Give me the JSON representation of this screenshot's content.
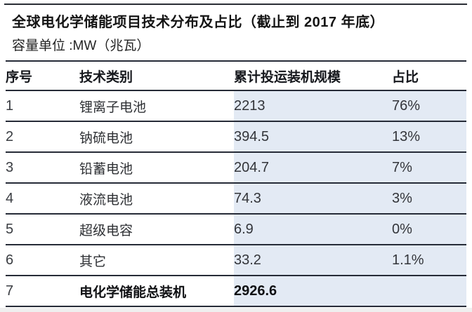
{
  "header": {
    "title": "全球电化学储能项目技术分布及占比（截止到 2017 年底）",
    "unit_label": "容量单位 :MW（兆瓦）"
  },
  "chart_data": {
    "type": "table",
    "title": "全球电化学储能项目技术分布及占比（截止到 2017 年底）",
    "unit": "MW（兆瓦）",
    "as_of": "2017 年底",
    "columns": [
      "序号",
      "技术类别",
      "累计投运装机规模",
      "占比"
    ],
    "rows": [
      {
        "no": "1",
        "tech": "锂离子电池",
        "capacity": 2213,
        "share": "76%"
      },
      {
        "no": "2",
        "tech": "钠硫电池",
        "capacity": 394.5,
        "share": "13%"
      },
      {
        "no": "3",
        "tech": "铅蓄电池",
        "capacity": 204.7,
        "share": "7%"
      },
      {
        "no": "4",
        "tech": "液流电池",
        "capacity": 74.3,
        "share": "3%"
      },
      {
        "no": "5",
        "tech": "超级电容",
        "capacity": 6.9,
        "share": "0%"
      },
      {
        "no": "6",
        "tech": "其它",
        "capacity": 33.2,
        "share": "1.1%"
      },
      {
        "no": "7",
        "tech": "电化学储能总装机",
        "capacity": 2926.6,
        "share": ""
      }
    ],
    "total_row_index": 6
  },
  "colors": {
    "highlight_band": "#e3eaf4",
    "rule_line": "#262b37",
    "text": "#141414",
    "background": "#ffffff"
  }
}
